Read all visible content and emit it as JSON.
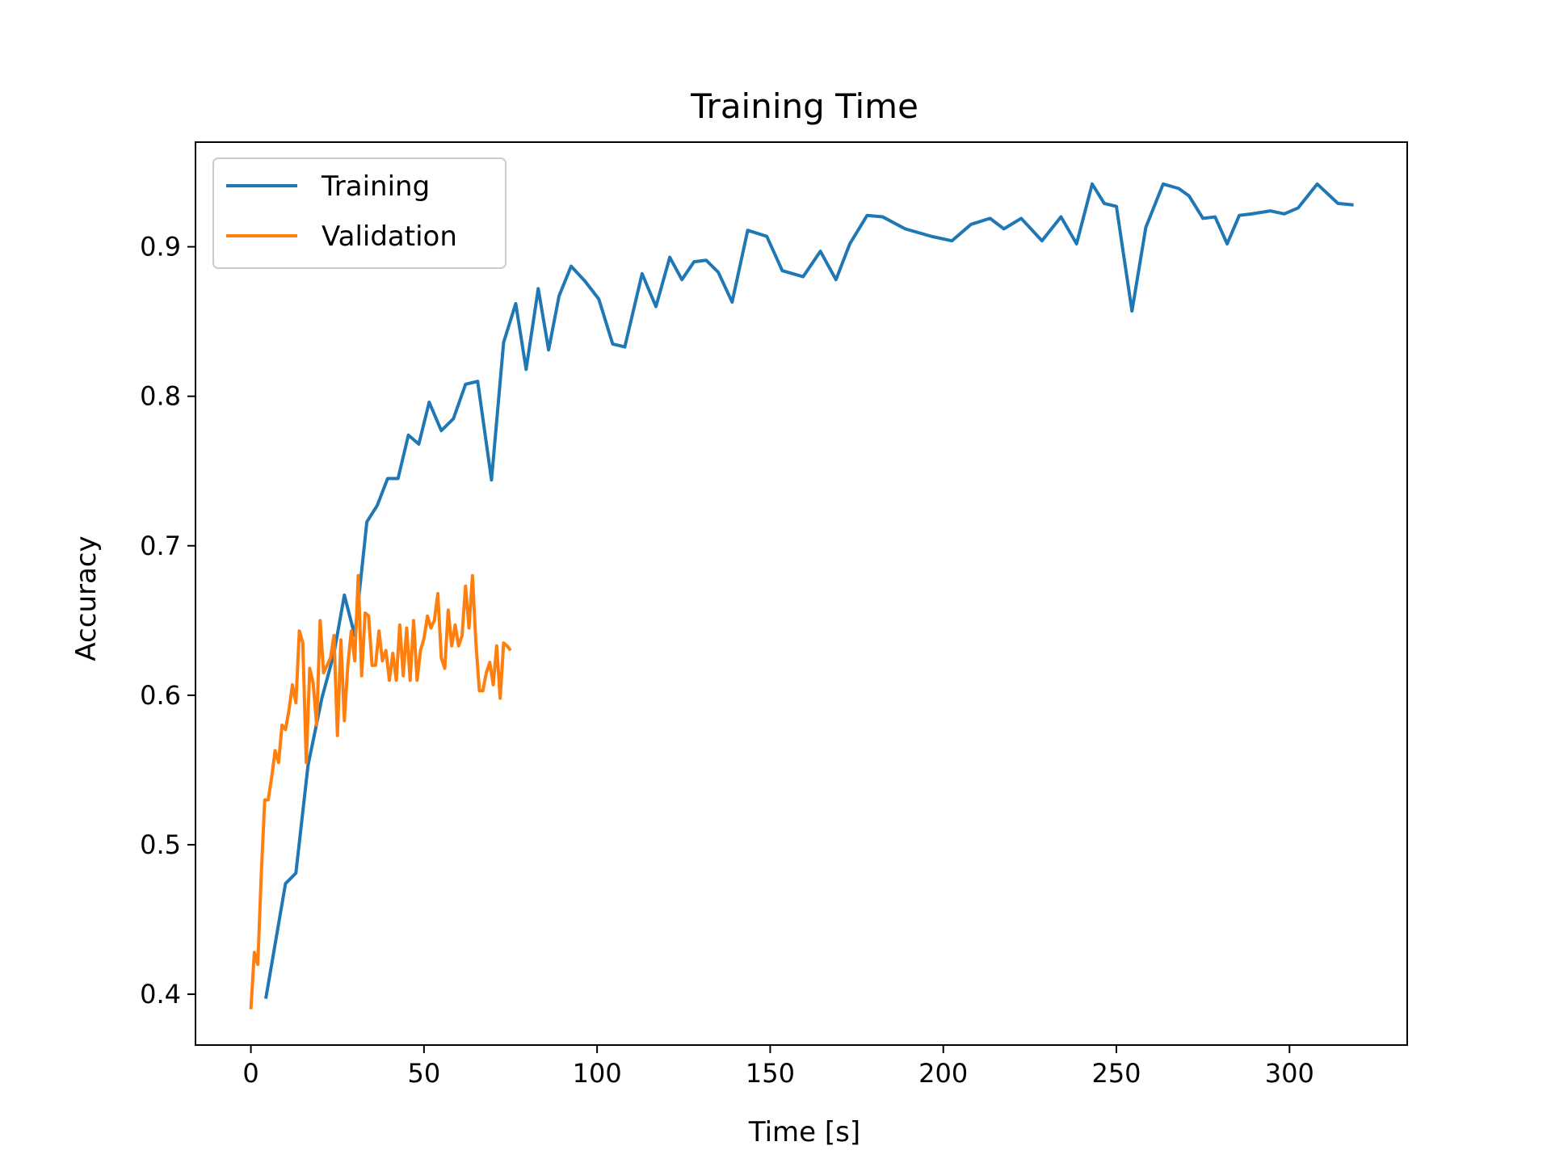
{
  "chart_data": {
    "type": "line",
    "title": "Training Time",
    "xlabel": "Time [s]",
    "ylabel": "Accuracy",
    "xlim": [
      -16,
      334
    ],
    "ylim": [
      0.366,
      0.97
    ],
    "xticks": [
      0,
      50,
      100,
      150,
      200,
      250,
      300
    ],
    "xtick_labels": [
      "0",
      "50",
      "100",
      "150",
      "200",
      "250",
      "300"
    ],
    "yticks": [
      0.4,
      0.5,
      0.6,
      0.7,
      0.8,
      0.9
    ],
    "ytick_labels": [
      "0.4",
      "0.5",
      "0.6",
      "0.7",
      "0.8",
      "0.9"
    ],
    "grid": false,
    "legend_position": "top-left",
    "series": [
      {
        "name": "Training",
        "color": "#1f77b4",
        "x": [
          4.3,
          10.0,
          13.0,
          16.5,
          20.5,
          24.0,
          27.0,
          30.0,
          33.5,
          36.5,
          39.5,
          42.5,
          45.5,
          48.5,
          51.5,
          55.0,
          58.5,
          62.0,
          65.5,
          69.5,
          73.0,
          76.5,
          79.5,
          83.0,
          86.0,
          89.0,
          92.5,
          96.5,
          100.5,
          104.5,
          108.0,
          113.0,
          117.0,
          121.0,
          124.5,
          128.0,
          131.5,
          135.0,
          139.0,
          143.5,
          149.0,
          153.5,
          159.5,
          164.5,
          169.0,
          173.0,
          178.0,
          182.5,
          189.0,
          196.5,
          202.5,
          208.0,
          213.5,
          217.5,
          222.5,
          228.5,
          234.0,
          238.5,
          243.0,
          246.5,
          250.0,
          254.5,
          258.5,
          263.5,
          268.0,
          271.0,
          275.0,
          278.5,
          282.0,
          285.5,
          289.0,
          294.5,
          298.5,
          302.5,
          308.0,
          314.0,
          318.5
        ],
        "y": [
          0.397,
          0.474,
          0.481,
          0.553,
          0.598,
          0.628,
          0.667,
          0.64,
          0.716,
          0.727,
          0.745,
          0.745,
          0.774,
          0.768,
          0.796,
          0.777,
          0.785,
          0.808,
          0.81,
          0.744,
          0.836,
          0.862,
          0.818,
          0.872,
          0.831,
          0.867,
          0.887,
          0.877,
          0.865,
          0.835,
          0.833,
          0.882,
          0.86,
          0.893,
          0.878,
          0.89,
          0.891,
          0.883,
          0.863,
          0.911,
          0.907,
          0.884,
          0.88,
          0.897,
          0.878,
          0.902,
          0.921,
          0.92,
          0.912,
          0.907,
          0.904,
          0.915,
          0.919,
          0.912,
          0.919,
          0.904,
          0.92,
          0.902,
          0.942,
          0.929,
          0.927,
          0.857,
          0.913,
          0.942,
          0.939,
          0.934,
          0.919,
          0.92,
          0.902,
          0.921,
          0.922,
          0.924,
          0.922,
          0.926,
          0.942,
          0.929,
          0.928
        ]
      },
      {
        "name": "Validation",
        "color": "#ff7f0e",
        "x": [
          0.0,
          1.0,
          2.0,
          3.0,
          4.0,
          5.0,
          6.0,
          7.0,
          8.0,
          9.0,
          10.0,
          11.0,
          12.0,
          13.0,
          14.0,
          15.0,
          16.0,
          17.0,
          18.0,
          19.0,
          20.0,
          21.0,
          22.0,
          23.0,
          24.0,
          25.0,
          26.0,
          27.0,
          28.0,
          29.0,
          30.0,
          31.0,
          32.0,
          33.0,
          34.0,
          35.0,
          36.0,
          37.0,
          38.0,
          39.0,
          40.0,
          41.0,
          42.0,
          43.0,
          44.0,
          45.0,
          46.0,
          47.0,
          48.0,
          49.0,
          50.0,
          51.0,
          52.0,
          53.0,
          54.0,
          55.0,
          56.0,
          57.0,
          58.0,
          59.0,
          60.0,
          61.0,
          62.0,
          63.0,
          64.0,
          65.0,
          66.0,
          67.0,
          68.0,
          69.0,
          70.0,
          71.0,
          72.0,
          73.0,
          74.0,
          75.0
        ],
        "y": [
          0.39,
          0.428,
          0.42,
          0.48,
          0.53,
          0.53,
          0.545,
          0.563,
          0.555,
          0.58,
          0.577,
          0.59,
          0.607,
          0.595,
          0.643,
          0.635,
          0.555,
          0.618,
          0.608,
          0.58,
          0.65,
          0.615,
          0.62,
          0.625,
          0.64,
          0.573,
          0.637,
          0.583,
          0.62,
          0.643,
          0.623,
          0.68,
          0.613,
          0.655,
          0.653,
          0.62,
          0.62,
          0.643,
          0.623,
          0.63,
          0.61,
          0.628,
          0.61,
          0.647,
          0.613,
          0.645,
          0.61,
          0.65,
          0.61,
          0.63,
          0.638,
          0.653,
          0.645,
          0.65,
          0.668,
          0.625,
          0.618,
          0.657,
          0.633,
          0.647,
          0.633,
          0.64,
          0.673,
          0.645,
          0.68,
          0.635,
          0.603,
          0.603,
          0.615,
          0.622,
          0.607,
          0.633,
          0.598,
          0.635,
          0.633,
          0.63
        ]
      }
    ]
  }
}
